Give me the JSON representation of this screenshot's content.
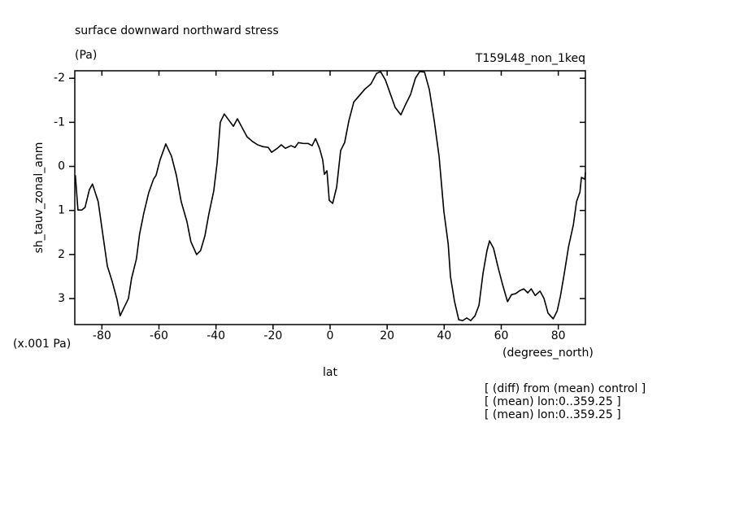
{
  "chart_data": {
    "type": "line",
    "title": "surface downward northward stress",
    "units": "(Pa)",
    "run_label": "T159L48_non_1keq",
    "y_label": "sh_tauv_zonal_anm",
    "y_scale_label": "(x.001 Pa)",
    "x_units": "(degrees_north)",
    "x_label": "lat",
    "notes": [
      "[ (diff) from (mean) control ]",
      "[ (mean) lon:0..359.25 ]",
      "[ (mean) lon:0..359.25 ]"
    ],
    "invert_y": true,
    "xlim": [
      -89.5,
      89.5
    ],
    "ylim": [
      -2.17,
      3.59
    ],
    "xticks": [
      -80,
      -60,
      -40,
      -20,
      0,
      20,
      40,
      60,
      80
    ],
    "yticks": [
      -2,
      -1,
      0,
      1,
      2,
      3
    ],
    "color": "#000000",
    "x": [
      -89.3,
      -88.4,
      -87.0,
      -85.9,
      -84.4,
      -83.3,
      -81.3,
      -79.6,
      -78.1,
      -76.4,
      -74.7,
      -73.6,
      -72.2,
      -70.7,
      -69.6,
      -67.9,
      -66.8,
      -65.3,
      -63.6,
      -61.9,
      -61.0,
      -59.6,
      -57.6,
      -55.6,
      -53.9,
      -52.2,
      -50.2,
      -48.8,
      -46.8,
      -45.4,
      -43.9,
      -42.5,
      -40.8,
      -39.6,
      -38.5,
      -37.1,
      -35.4,
      -33.9,
      -32.5,
      -31.1,
      -29.1,
      -27.1,
      -25.4,
      -23.7,
      -21.7,
      -20.5,
      -18.5,
      -17.1,
      -15.7,
      -13.7,
      -12.3,
      -11.1,
      -9.4,
      -7.7,
      -6.3,
      -5.1,
      -3.7,
      -2.6,
      -2.0,
      -1.1,
      -0.3,
      0.9,
      2.3,
      3.7,
      5.1,
      6.6,
      8.3,
      10.3,
      12.3,
      14.3,
      16.3,
      17.7,
      19.4,
      21.1,
      22.8,
      24.8,
      26.5,
      28.2,
      29.9,
      31.4,
      33.1,
      34.8,
      36.5,
      38.2,
      39.9,
      41.4,
      42.2,
      43.6,
      45.1,
      46.5,
      47.9,
      49.3,
      50.8,
      52.2,
      53.6,
      55.0,
      55.9,
      57.3,
      59.0,
      60.5,
      62.2,
      63.6,
      65.0,
      66.5,
      67.9,
      69.3,
      70.5,
      71.9,
      73.6,
      75.0,
      76.4,
      78.2,
      79.6,
      80.7,
      82.1,
      83.6,
      85.3,
      86.4,
      87.6,
      88.1,
      89.3,
      89.5
    ],
    "values": [
      0.2,
      0.99,
      0.99,
      0.93,
      0.53,
      0.4,
      0.8,
      1.58,
      2.26,
      2.61,
      3.02,
      3.39,
      3.2,
      3.0,
      2.54,
      2.1,
      1.54,
      1.06,
      0.6,
      0.29,
      0.2,
      -0.15,
      -0.51,
      -0.23,
      0.2,
      0.8,
      1.25,
      1.71,
      2.0,
      1.91,
      1.58,
      1.08,
      0.56,
      -0.08,
      -1.0,
      -1.19,
      -1.04,
      -0.91,
      -1.08,
      -0.91,
      -0.67,
      -0.56,
      -0.49,
      -0.45,
      -0.43,
      -0.32,
      -0.41,
      -0.49,
      -0.41,
      -0.47,
      -0.43,
      -0.54,
      -0.52,
      -0.52,
      -0.47,
      -0.63,
      -0.41,
      -0.15,
      0.18,
      0.1,
      0.77,
      0.84,
      0.47,
      -0.36,
      -0.54,
      -1.04,
      -1.46,
      -1.61,
      -1.76,
      -1.87,
      -2.11,
      -2.15,
      -1.96,
      -1.65,
      -1.34,
      -1.17,
      -1.41,
      -1.63,
      -2.0,
      -2.15,
      -2.14,
      -1.74,
      -1.04,
      -0.23,
      1.03,
      1.76,
      2.5,
      3.06,
      3.48,
      3.5,
      3.44,
      3.5,
      3.39,
      3.15,
      2.43,
      1.91,
      1.69,
      1.86,
      2.32,
      2.69,
      3.07,
      2.91,
      2.89,
      2.82,
      2.78,
      2.87,
      2.78,
      2.93,
      2.83,
      3.0,
      3.33,
      3.46,
      3.28,
      2.96,
      2.43,
      1.82,
      1.32,
      0.8,
      0.58,
      0.25,
      0.29,
      0.14
    ]
  }
}
